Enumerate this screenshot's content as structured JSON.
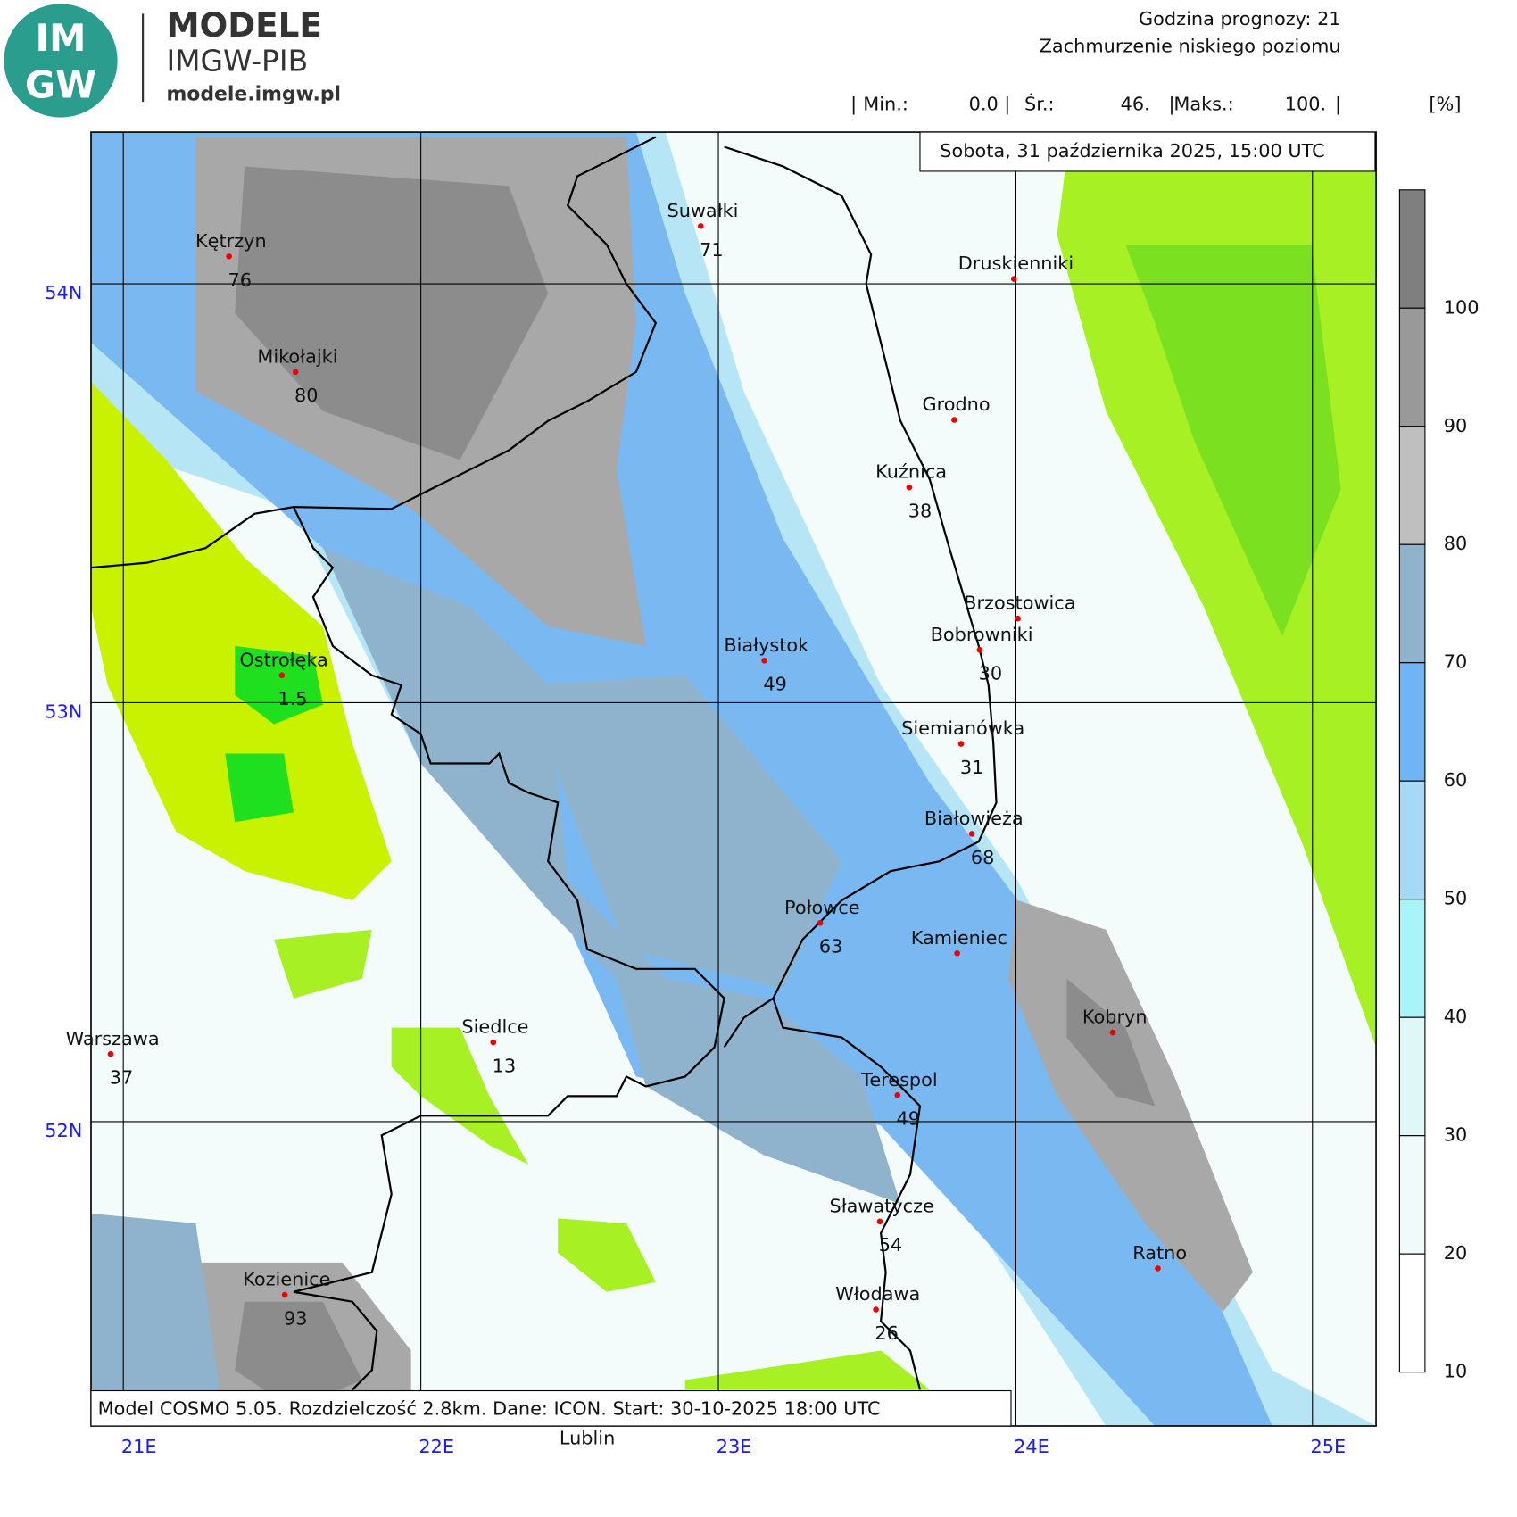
{
  "header": {
    "logo_top": "IM",
    "logo_bottom": "GW",
    "brand": "MODELE",
    "institute": "IMGW-PIB",
    "url": "modele.imgw.pl",
    "forecast_hour": "Godzina prognozy: 21",
    "parameter": "Zachmurzenie niskiego poziomu",
    "stats": [
      {
        "label": "Min.:",
        "value": "0.0"
      },
      {
        "label": "Śr.:",
        "value": "46."
      },
      {
        "label": "Maks.:",
        "value": "100."
      }
    ],
    "unit": "[%]",
    "valid_time": "Sobota, 31 października 2025, 15:00 UTC"
  },
  "map": {
    "latitudes": [
      "54N",
      "53N",
      "52N"
    ],
    "longitudes": [
      "21E",
      "22E",
      "23E",
      "24E",
      "25E"
    ],
    "cities": [
      {
        "name": "Kętrzyn",
        "value": "76"
      },
      {
        "name": "Mikołajki",
        "value": "80"
      },
      {
        "name": "Suwałki",
        "value": "71"
      },
      {
        "name": "Druskienniki"
      },
      {
        "name": "Grodno"
      },
      {
        "name": "Kuźnica",
        "value": "38"
      },
      {
        "name": "Brzostowica"
      },
      {
        "name": "Bobrowniki",
        "value": "30"
      },
      {
        "name": "Białystok",
        "value": "49"
      },
      {
        "name": "Ostrołęka",
        "value": "1.5"
      },
      {
        "name": "Siemianówka",
        "value": "31"
      },
      {
        "name": "Białowieża",
        "value": "68"
      },
      {
        "name": "Połowce",
        "value": "63"
      },
      {
        "name": "Kamieniec"
      },
      {
        "name": "Kobryn"
      },
      {
        "name": "Warszawa",
        "value": "37"
      },
      {
        "name": "Siedlce",
        "value": "13"
      },
      {
        "name": "Terespol",
        "value": "49"
      },
      {
        "name": "Sławatycze",
        "value": "54"
      },
      {
        "name": "Ratno"
      },
      {
        "name": "Kozienice",
        "value": "93"
      },
      {
        "name": "Włodawa",
        "value": "26"
      }
    ],
    "outside_label": "Lublin"
  },
  "colorbar": {
    "ticks": [
      100,
      90,
      80,
      70,
      60,
      50,
      40,
      30,
      20,
      10
    ]
  },
  "footer": "Model COSMO 5.05. Rozdzielczość 2.8km. Dane: ICON. Start: 30-10-2025 18:00 UTC"
}
